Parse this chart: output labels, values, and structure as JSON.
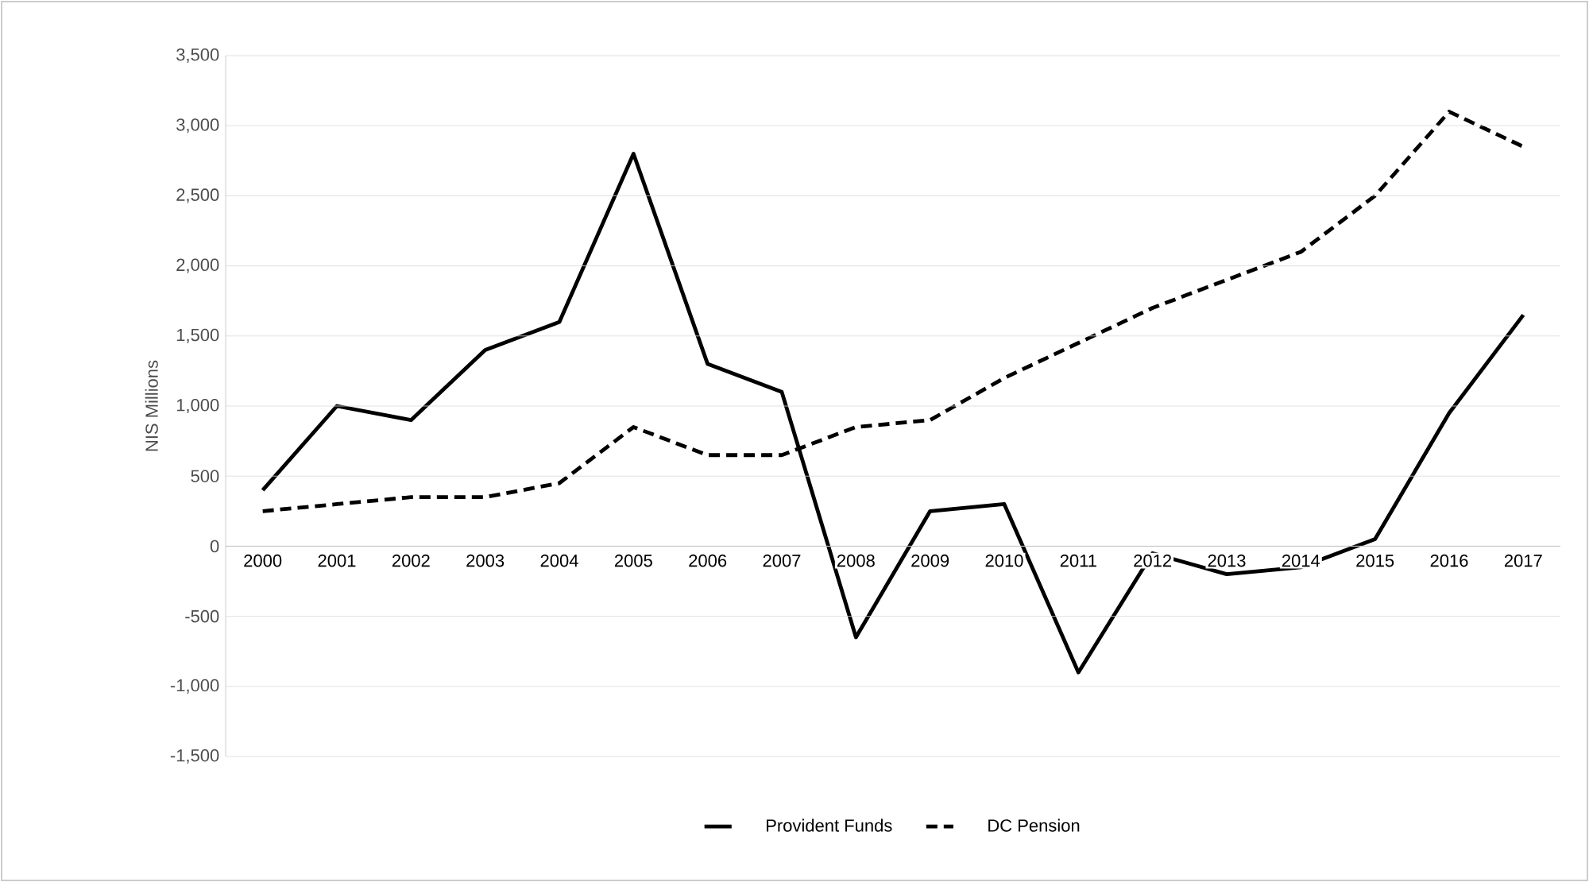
{
  "chart_data": {
    "type": "line",
    "ylabel": "NIS Millions",
    "categories": [
      "2000",
      "2001",
      "2002",
      "2003",
      "2004",
      "2005",
      "2006",
      "2007",
      "2008",
      "2009",
      "2010",
      "2011",
      "2012",
      "2013",
      "2014",
      "2015",
      "2016",
      "2017"
    ],
    "series": [
      {
        "name": "Provident Funds",
        "color": "#000000",
        "line_style": "solid",
        "values": [
          400,
          1000,
          900,
          1400,
          1600,
          2800,
          1300,
          1100,
          -650,
          250,
          300,
          -900,
          -50,
          -200,
          -150,
          50,
          950,
          1650
        ]
      },
      {
        "name": "DC Pension",
        "color": "#000000",
        "line_style": "dashed",
        "values": [
          250,
          300,
          350,
          350,
          450,
          850,
          650,
          650,
          850,
          900,
          1200,
          1450,
          1700,
          1900,
          2100,
          2500,
          3100,
          2850
        ]
      }
    ],
    "ylim": [
      -1500,
      3500
    ],
    "yticks": [
      {
        "value": -1500,
        "label": "-1,500"
      },
      {
        "value": -1000,
        "label": "-1,000"
      },
      {
        "value": -500,
        "label": "-500"
      },
      0,
      {
        "value": 500,
        "label": "500"
      },
      {
        "value": 1000,
        "label": "1,000"
      },
      {
        "value": 1500,
        "label": "1,500"
      },
      {
        "value": 2000,
        "label": "2,000"
      },
      {
        "value": 2500,
        "label": "2,500"
      },
      {
        "value": 3000,
        "label": "3,000"
      },
      {
        "value": 3500,
        "label": "3,500"
      }
    ],
    "grid": "y",
    "legend": "bottom",
    "marker": "none"
  }
}
